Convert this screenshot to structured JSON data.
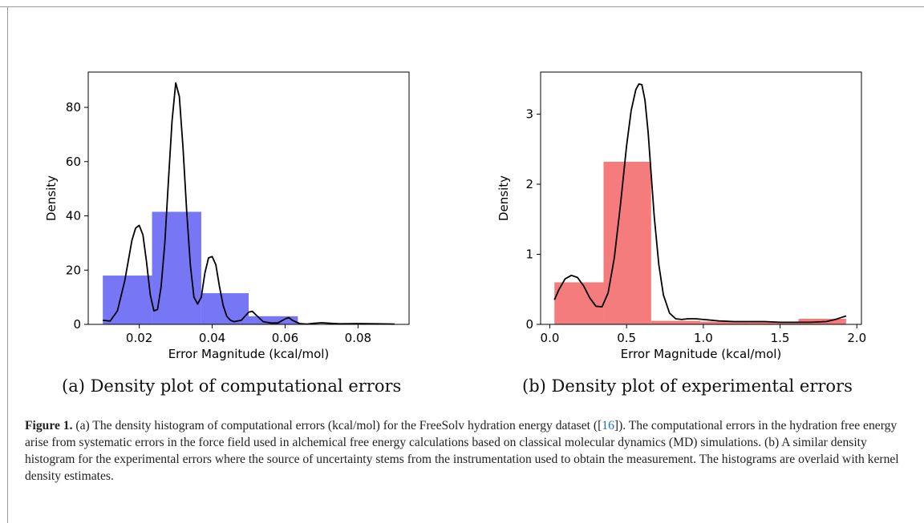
{
  "chart_data": [
    {
      "type": "bar",
      "title": "",
      "xlabel": "Error Magnitude (kcal/mol)",
      "ylabel": "Density",
      "xlim": [
        0.006,
        0.094
      ],
      "ylim": [
        0,
        93
      ],
      "xticks": [
        0.02,
        0.04,
        0.06,
        0.08
      ],
      "xtick_labels": [
        "0.02",
        "0.04",
        "0.06",
        "0.08"
      ],
      "yticks": [
        0,
        20,
        40,
        60,
        80
      ],
      "ytick_labels": [
        "0",
        "20",
        "40",
        "60",
        "80"
      ],
      "bar_color": "#7777f5",
      "bins": [
        {
          "x0": 0.01,
          "x1": 0.0235,
          "value": 18
        },
        {
          "x0": 0.0235,
          "x1": 0.037,
          "value": 41.5
        },
        {
          "x0": 0.037,
          "x1": 0.05,
          "value": 11.5
        },
        {
          "x0": 0.05,
          "x1": 0.0635,
          "value": 3
        }
      ],
      "kde": {
        "x": [
          0.01,
          0.012,
          0.014,
          0.016,
          0.018,
          0.019,
          0.02,
          0.021,
          0.022,
          0.023,
          0.024,
          0.025,
          0.026,
          0.027,
          0.028,
          0.029,
          0.03,
          0.031,
          0.032,
          0.033,
          0.034,
          0.035,
          0.036,
          0.037,
          0.038,
          0.039,
          0.04,
          0.041,
          0.042,
          0.043,
          0.044,
          0.045,
          0.046,
          0.048,
          0.05,
          0.051,
          0.052,
          0.054,
          0.056,
          0.058,
          0.06,
          0.061,
          0.062,
          0.064,
          0.066,
          0.068,
          0.07,
          0.075,
          0.08,
          0.085,
          0.09
        ],
        "y": [
          1.5,
          1.2,
          5,
          16,
          31,
          35.5,
          36.5,
          33,
          23,
          11,
          5,
          5.5,
          14,
          30,
          53,
          75,
          89,
          84,
          65,
          42,
          22,
          10,
          7.5,
          10,
          19,
          24.5,
          25,
          22,
          14,
          7,
          3,
          1.5,
          1,
          1.5,
          4.5,
          4.8,
          3.5,
          1,
          0.5,
          0.5,
          2,
          2.5,
          1.5,
          0.3,
          0.1,
          0.4,
          0.6,
          0.2,
          0.3,
          0.2,
          0.1
        ]
      }
    },
    {
      "type": "bar",
      "title": "",
      "xlabel": "Error Magnitude (kcal/mol)",
      "ylabel": "Density",
      "xlim": [
        -0.06,
        2.03
      ],
      "ylim": [
        0,
        3.6
      ],
      "xticks": [
        0.0,
        0.5,
        1.0,
        1.5,
        2.0
      ],
      "xtick_labels": [
        "0.0",
        "0.5",
        "1.0",
        "1.5",
        "2.0"
      ],
      "yticks": [
        0,
        1,
        2,
        3
      ],
      "ytick_labels": [
        "0",
        "1",
        "2",
        "3"
      ],
      "bar_color": "#f47c7c",
      "bins": [
        {
          "x0": 0.03,
          "x1": 0.35,
          "value": 0.6
        },
        {
          "x0": 0.35,
          "x1": 0.66,
          "value": 2.32
        },
        {
          "x0": 0.66,
          "x1": 0.98,
          "value": 0.05
        },
        {
          "x0": 0.98,
          "x1": 1.3,
          "value": 0.04
        },
        {
          "x0": 1.3,
          "x1": 1.62,
          "value": 0.04
        },
        {
          "x0": 1.62,
          "x1": 1.93,
          "value": 0.08
        }
      ],
      "kde": {
        "x": [
          0.03,
          0.06,
          0.1,
          0.14,
          0.18,
          0.22,
          0.26,
          0.3,
          0.34,
          0.38,
          0.42,
          0.46,
          0.5,
          0.53,
          0.56,
          0.58,
          0.6,
          0.62,
          0.64,
          0.66,
          0.68,
          0.71,
          0.74,
          0.78,
          0.82,
          0.86,
          0.9,
          0.95,
          1.0,
          1.1,
          1.2,
          1.3,
          1.4,
          1.5,
          1.6,
          1.7,
          1.8,
          1.86,
          1.9,
          1.93
        ],
        "y": [
          0.35,
          0.5,
          0.65,
          0.7,
          0.67,
          0.55,
          0.38,
          0.26,
          0.25,
          0.45,
          0.95,
          1.7,
          2.55,
          3.05,
          3.35,
          3.43,
          3.42,
          3.2,
          2.75,
          2.15,
          1.55,
          0.85,
          0.42,
          0.16,
          0.08,
          0.07,
          0.08,
          0.08,
          0.07,
          0.05,
          0.04,
          0.04,
          0.04,
          0.03,
          0.03,
          0.03,
          0.04,
          0.07,
          0.1,
          0.12
        ]
      }
    }
  ],
  "subcaptions": {
    "a": "(a) Density plot of computational errors",
    "b": "(b) Density plot of experimental errors"
  },
  "caption": {
    "lead": "Figure 1.",
    "text1": " (a) The density histogram of computational errors (kcal/mol) for the FreeSolv hydration energy dataset ([",
    "cite": "16",
    "text2": "]). The computational errors in the hydration free energy arise from systematic errors in the force field used in alchemical free energy calculations based on classical molecular dynamics (MD) simulations. (b) A similar density histogram for the experimental errors where the source of uncertainty stems from the instrumentation used to obtain the measurement. The histograms are overlaid with kernel density estimates."
  }
}
